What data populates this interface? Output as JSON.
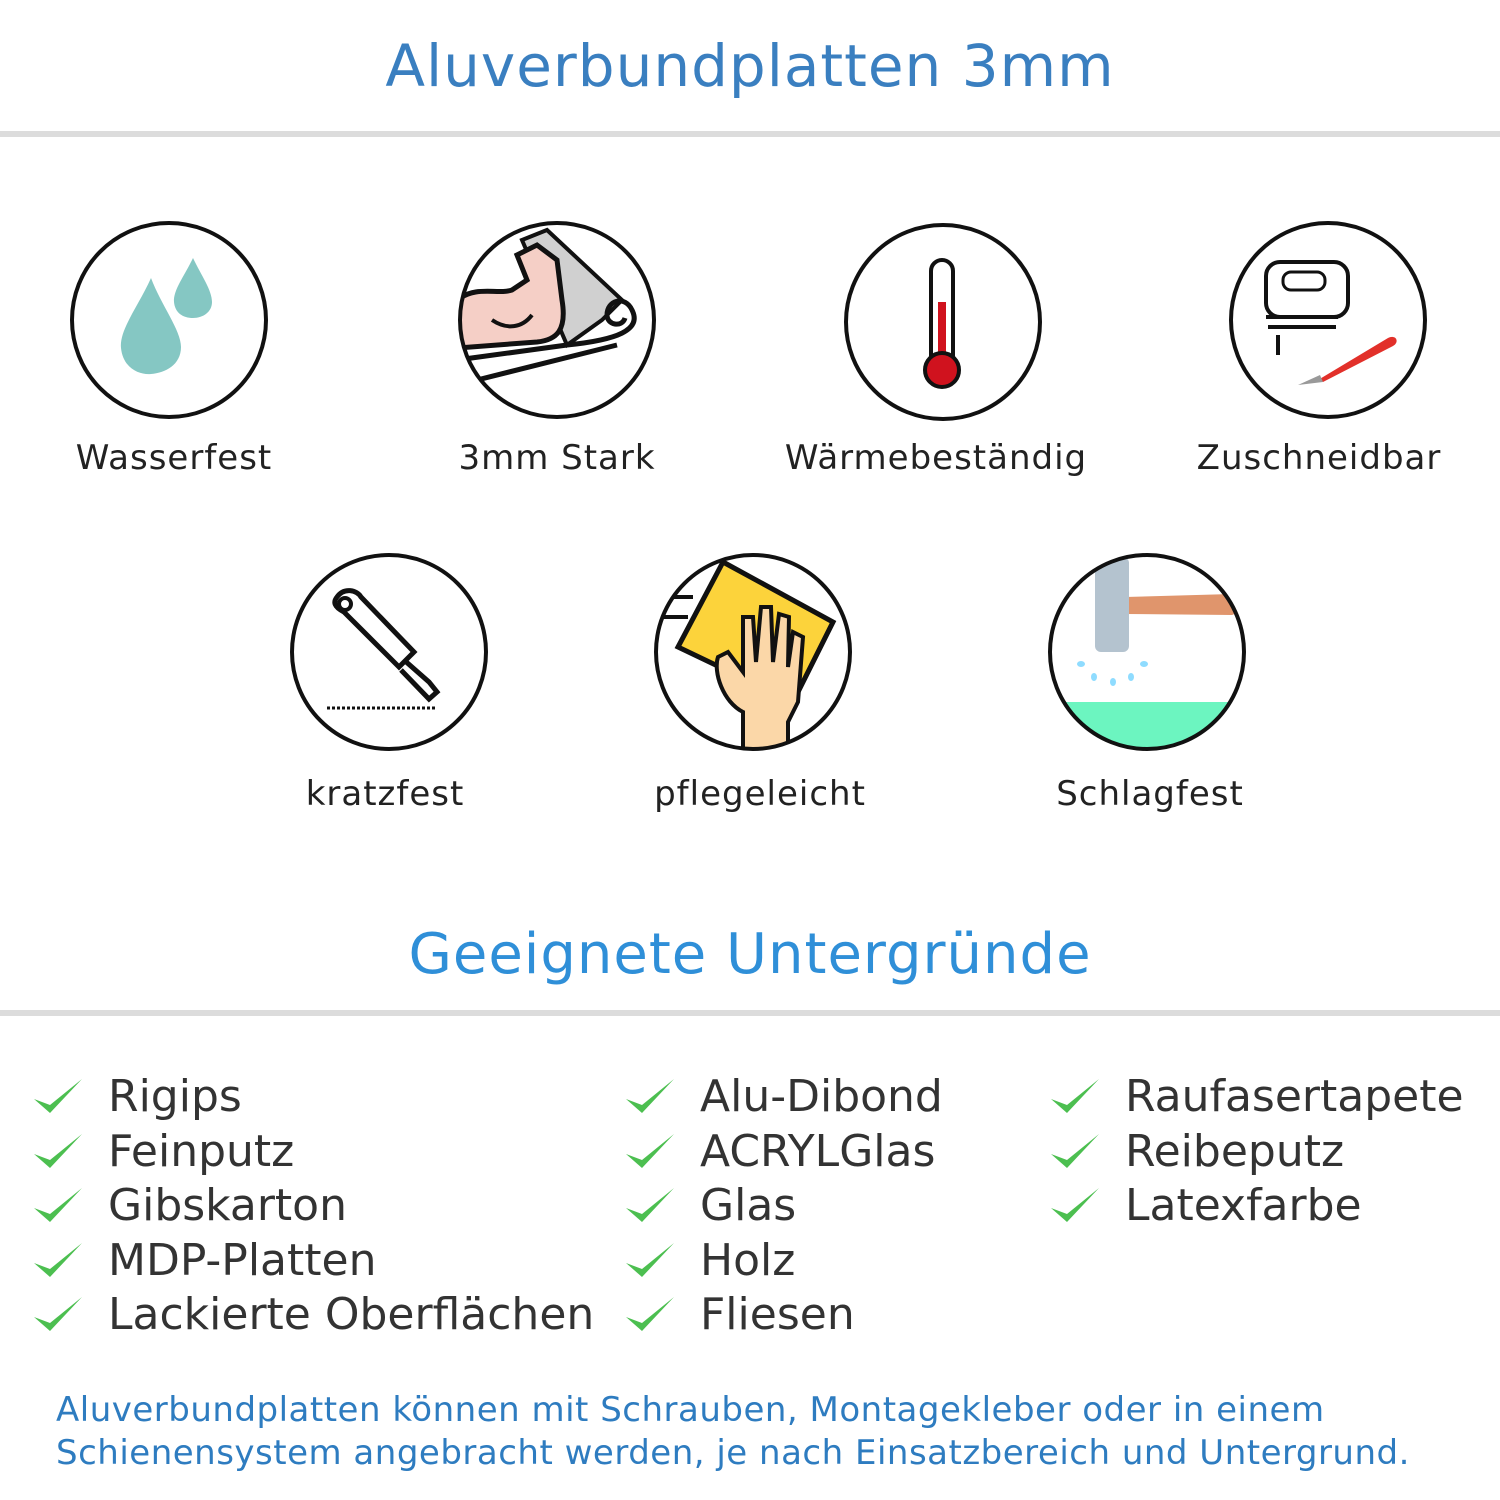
{
  "title": "Aluverbundplatten 3mm",
  "features": [
    {
      "label": "Wasserfest",
      "icon": "water-drops-icon"
    },
    {
      "label": "3mm Stark",
      "icon": "strong-arm-icon"
    },
    {
      "label": "Wärmebeständig",
      "icon": "thermometer-icon"
    },
    {
      "label": "Zuschneidbar",
      "icon": "jigsaw-icon"
    },
    {
      "label": "kratzfest",
      "icon": "cutter-knife-icon"
    },
    {
      "label": "pflegeleicht",
      "icon": "cleaning-hand-icon"
    },
    {
      "label": "Schlagfest",
      "icon": "hammer-icon"
    }
  ],
  "subtitle": "Geeignete Untergründe",
  "surfaces": {
    "col1": [
      "Rigips",
      "Feinputz",
      "Gibskarton",
      "MDP-Platten",
      "Lackierte Oberflächen"
    ],
    "col2": [
      "Alu-Dibond",
      "ACRYLGlas",
      "Glas",
      "Holz",
      "Fliesen"
    ],
    "col3": [
      "Raufasertapete",
      "Reibeputz",
      "Latexfarbe"
    ]
  },
  "note": {
    "line1": "Aluverbundplatten können mit Schrauben, Montagekleber oder in einem",
    "line2": "Schienensystem angebracht werden, je nach Einsatzbereich und Untergrund."
  },
  "colors": {
    "title": "#3a7fc0",
    "subtitle": "#2f8fd8",
    "check": "#4cbf50",
    "note": "#2e7cc0"
  }
}
